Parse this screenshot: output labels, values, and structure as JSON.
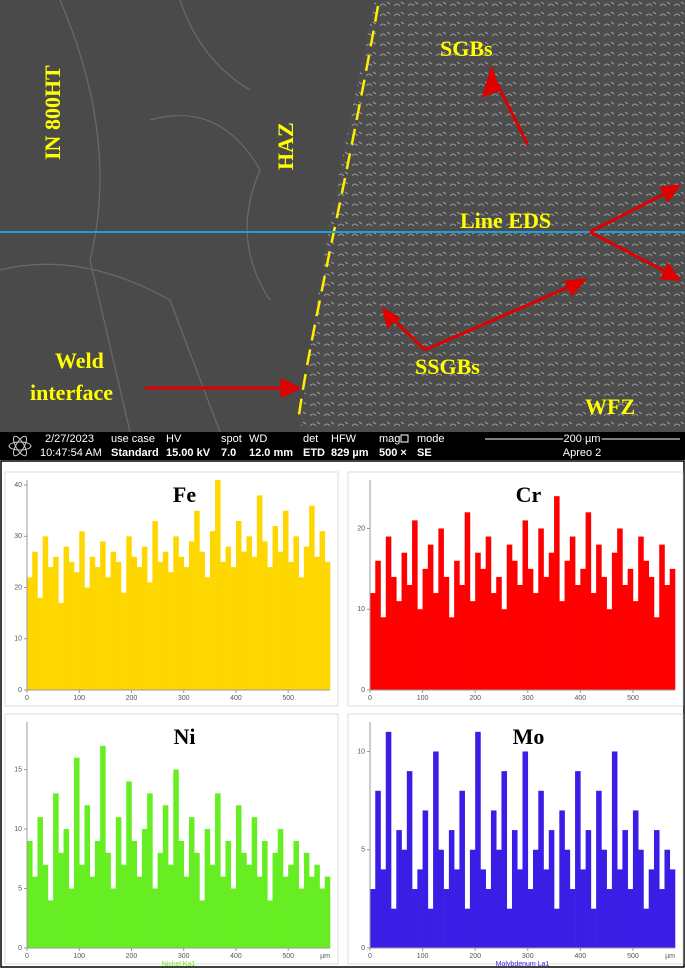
{
  "sem": {
    "labels": {
      "base": "IN 800HT",
      "haz": "HAZ",
      "sgb": "SGBs",
      "line_eds": "Line EDS",
      "ssgb": "SSGBs",
      "weld1": "Weld",
      "weld2": "interface",
      "wfz": "WFZ"
    },
    "info": {
      "date": "2/27/2023",
      "time": "10:47:54 AM",
      "usecase_h": "use case",
      "usecase": "Standard",
      "hv_h": "HV",
      "hv": "15.00 kV",
      "spot_h": "spot",
      "spot": "7.0",
      "wd_h": "WD",
      "wd": "12.0 mm",
      "det_h": "det",
      "det": "ETD",
      "hfw_h": "HFW",
      "hfw": "829 µm",
      "mag_h": "mag",
      "mag": "500 ×",
      "mode_h": "mode",
      "mode": "SE",
      "scale": "200 µm",
      "instrument": "Apreo 2"
    }
  },
  "chart_data": [
    {
      "type": "bar",
      "title": "Fe",
      "color": "#ffd700",
      "xlim": [
        0,
        580
      ],
      "xticks": [
        0,
        100,
        200,
        300,
        400,
        500
      ],
      "ylim": [
        0,
        41
      ],
      "yticks": [
        0,
        10,
        20,
        30,
        40
      ],
      "x": [
        5,
        15,
        25,
        35,
        45,
        55,
        65,
        75,
        85,
        95,
        105,
        115,
        125,
        135,
        145,
        155,
        165,
        175,
        185,
        195,
        205,
        215,
        225,
        235,
        245,
        255,
        265,
        275,
        285,
        295,
        305,
        315,
        325,
        335,
        345,
        355,
        365,
        375,
        385,
        395,
        405,
        415,
        425,
        435,
        445,
        455,
        465,
        475,
        485,
        495,
        505,
        515,
        525,
        535,
        545,
        555,
        565,
        575
      ],
      "values": [
        22,
        27,
        18,
        30,
        24,
        26,
        17,
        28,
        25,
        23,
        31,
        20,
        26,
        24,
        29,
        22,
        27,
        25,
        19,
        30,
        26,
        24,
        28,
        21,
        33,
        25,
        27,
        23,
        30,
        26,
        24,
        29,
        35,
        27,
        22,
        31,
        41,
        25,
        28,
        24,
        33,
        27,
        30,
        26,
        38,
        29,
        24,
        32,
        27,
        35,
        25,
        30,
        22,
        28,
        36,
        26,
        31,
        25
      ]
    },
    {
      "type": "bar",
      "title": "Cr",
      "color": "#ff0000",
      "xlim": [
        0,
        580
      ],
      "xticks": [
        0,
        100,
        200,
        300,
        400,
        500
      ],
      "ylim": [
        0,
        26
      ],
      "yticks": [
        0,
        10,
        20
      ],
      "x": [
        5,
        15,
        25,
        35,
        45,
        55,
        65,
        75,
        85,
        95,
        105,
        115,
        125,
        135,
        145,
        155,
        165,
        175,
        185,
        195,
        205,
        215,
        225,
        235,
        245,
        255,
        265,
        275,
        285,
        295,
        305,
        315,
        325,
        335,
        345,
        355,
        365,
        375,
        385,
        395,
        405,
        415,
        425,
        435,
        445,
        455,
        465,
        475,
        485,
        495,
        505,
        515,
        525,
        535,
        545,
        555,
        565,
        575
      ],
      "values": [
        12,
        16,
        9,
        19,
        14,
        11,
        17,
        13,
        21,
        10,
        15,
        18,
        12,
        20,
        14,
        9,
        16,
        13,
        22,
        11,
        17,
        15,
        19,
        12,
        14,
        10,
        18,
        16,
        13,
        21,
        15,
        12,
        20,
        14,
        17,
        24,
        11,
        16,
        19,
        13,
        15,
        22,
        12,
        18,
        14,
        10,
        17,
        20,
        13,
        15,
        11,
        19,
        16,
        14,
        9,
        18,
        13,
        15
      ]
    },
    {
      "type": "bar",
      "title": "Ni",
      "color": "#66ee22",
      "xlim": [
        0,
        580
      ],
      "xticks": [
        0,
        100,
        200,
        300,
        400,
        500
      ],
      "ylim": [
        0,
        19
      ],
      "yticks": [
        0,
        5,
        10,
        15
      ],
      "xlabel": "µm",
      "footnote": "Nickel Ka1",
      "x": [
        5,
        15,
        25,
        35,
        45,
        55,
        65,
        75,
        85,
        95,
        105,
        115,
        125,
        135,
        145,
        155,
        165,
        175,
        185,
        195,
        205,
        215,
        225,
        235,
        245,
        255,
        265,
        275,
        285,
        295,
        305,
        315,
        325,
        335,
        345,
        355,
        365,
        375,
        385,
        395,
        405,
        415,
        425,
        435,
        445,
        455,
        465,
        475,
        485,
        495,
        505,
        515,
        525,
        535,
        545,
        555,
        565,
        575
      ],
      "values": [
        9,
        6,
        11,
        7,
        4,
        13,
        8,
        10,
        5,
        16,
        7,
        12,
        6,
        9,
        17,
        8,
        5,
        11,
        7,
        14,
        9,
        6,
        10,
        13,
        5,
        8,
        12,
        7,
        15,
        9,
        6,
        11,
        8,
        4,
        10,
        7,
        13,
        6,
        9,
        5,
        12,
        8,
        7,
        11,
        6,
        9,
        4,
        8,
        10,
        6,
        7,
        9,
        5,
        8,
        6,
        7,
        5,
        6
      ]
    },
    {
      "type": "bar",
      "title": "Mo",
      "color": "#3a1ee6",
      "xlim": [
        0,
        580
      ],
      "xticks": [
        0,
        100,
        200,
        300,
        400,
        500
      ],
      "ylim": [
        0,
        11.5
      ],
      "yticks": [
        0,
        5,
        10
      ],
      "xlabel": "µm",
      "footnote": "Molybdenum La1",
      "x": [
        5,
        15,
        25,
        35,
        45,
        55,
        65,
        75,
        85,
        95,
        105,
        115,
        125,
        135,
        145,
        155,
        165,
        175,
        185,
        195,
        205,
        215,
        225,
        235,
        245,
        255,
        265,
        275,
        285,
        295,
        305,
        315,
        325,
        335,
        345,
        355,
        365,
        375,
        385,
        395,
        405,
        415,
        425,
        435,
        445,
        455,
        465,
        475,
        485,
        495,
        505,
        515,
        525,
        535,
        545,
        555,
        565,
        575
      ],
      "values": [
        3,
        8,
        4,
        11,
        2,
        6,
        5,
        9,
        3,
        4,
        7,
        2,
        10,
        5,
        3,
        6,
        4,
        8,
        2,
        5,
        11,
        4,
        3,
        7,
        5,
        9,
        2,
        6,
        4,
        10,
        3,
        5,
        8,
        4,
        6,
        2,
        7,
        5,
        3,
        9,
        4,
        6,
        2,
        8,
        5,
        3,
        10,
        4,
        6,
        3,
        7,
        5,
        2,
        4,
        6,
        3,
        5,
        4
      ]
    }
  ]
}
